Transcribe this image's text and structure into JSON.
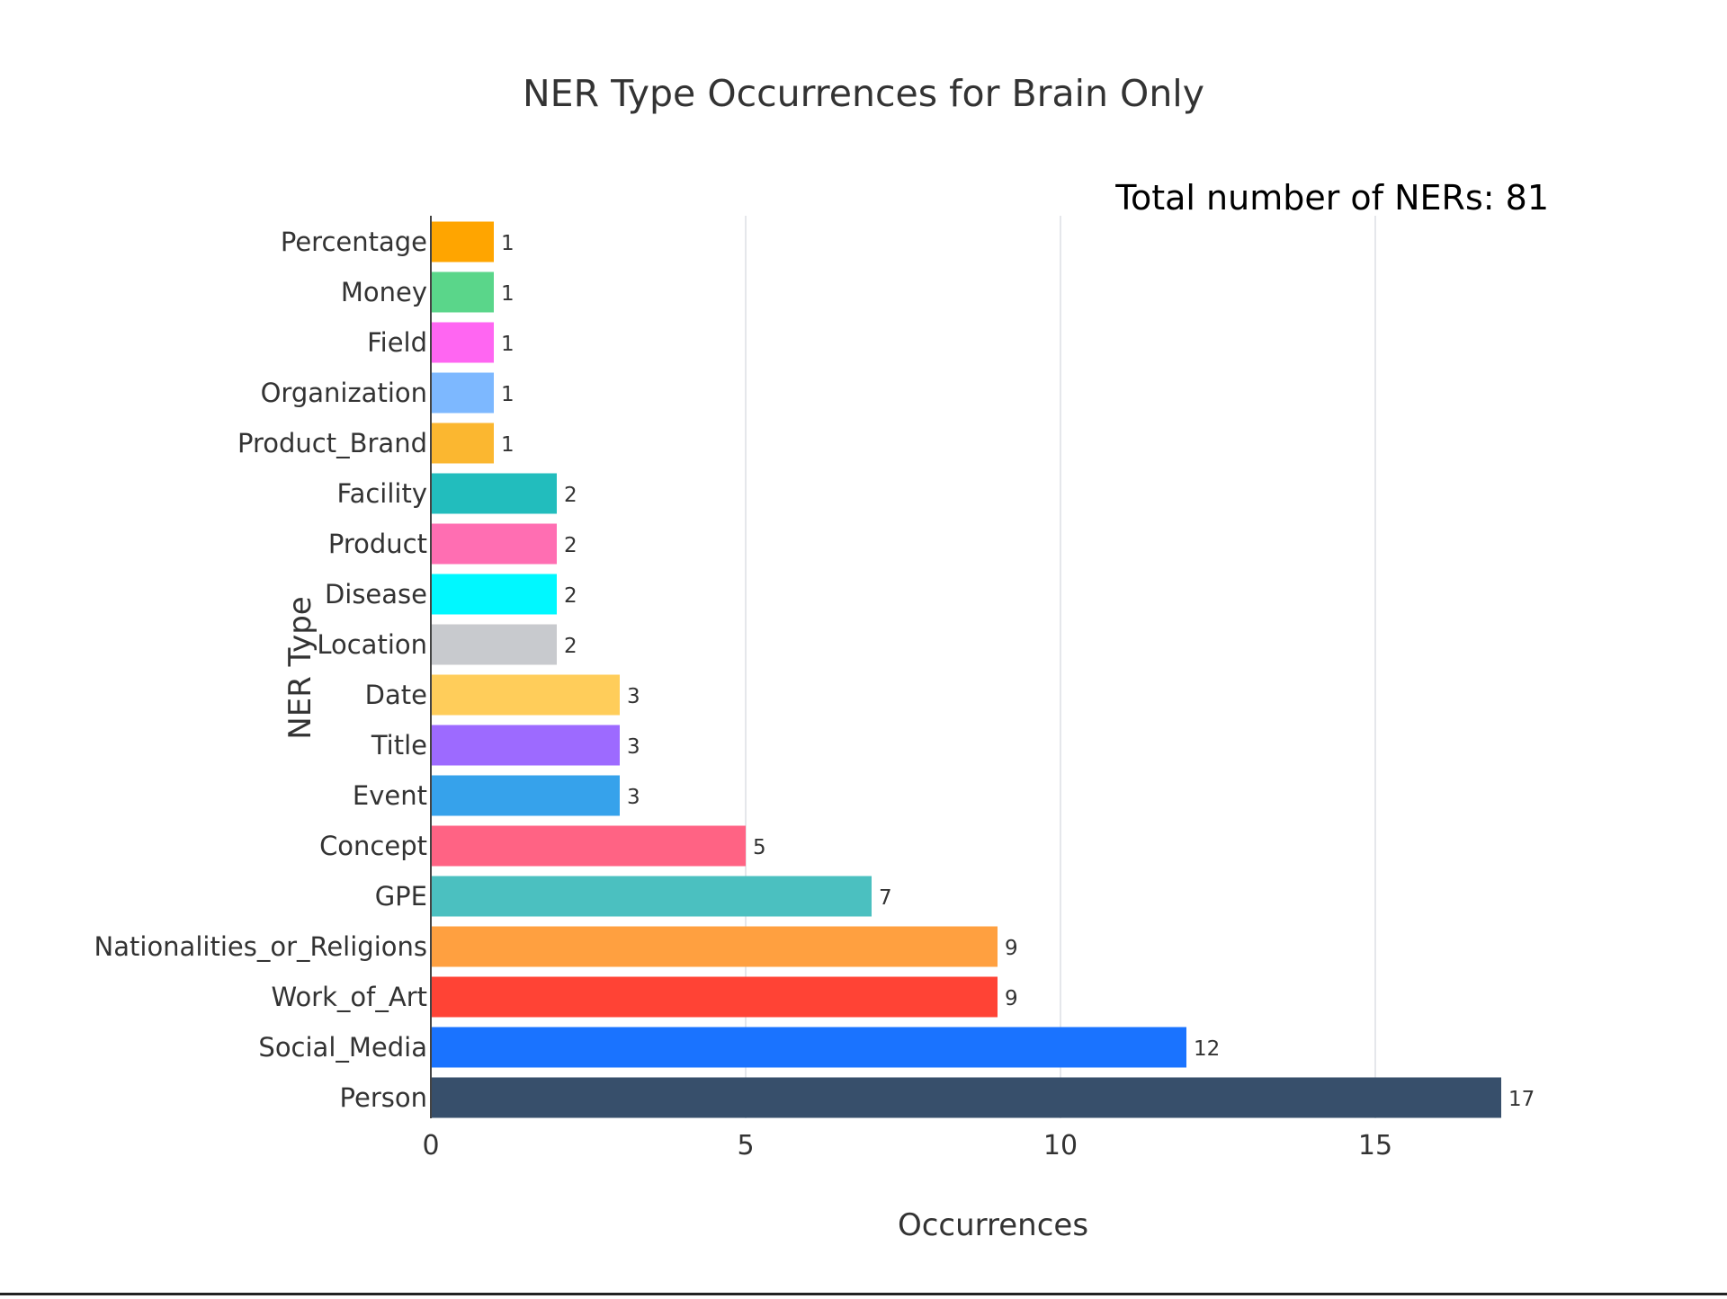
{
  "colors": {
    "background": "#ffffff",
    "grid": "#e5e7eb",
    "axis_line": "#444444",
    "text": "#333333",
    "annotation": "#000000"
  },
  "annotation": {
    "total_label": "Total number of NERs: 81"
  },
  "chart_data": {
    "type": "bar",
    "orientation": "horizontal",
    "title": "NER Type Occurrences for Brain Only",
    "xlabel": "Occurrences",
    "ylabel": "NER Type",
    "xlim": [
      0,
      17.6
    ],
    "xticks": [
      0,
      5,
      10,
      15
    ],
    "grid": true,
    "show_data_labels": true,
    "categories": [
      "Percentage",
      "Money",
      "Field",
      "Organization",
      "Product_Brand",
      "Facility",
      "Product",
      "Disease",
      "Location",
      "Date",
      "Title",
      "Event",
      "Concept",
      "GPE",
      "Nationalities_or_Religions",
      "Work_of_Art",
      "Social_Media",
      "Person"
    ],
    "values": [
      1,
      1,
      1,
      1,
      1,
      2,
      2,
      2,
      2,
      3,
      3,
      3,
      5,
      7,
      9,
      9,
      12,
      17
    ],
    "bar_colors": [
      "#FFA500",
      "#5AD68A",
      "#FF66F2",
      "#7DB8FF",
      "#FBB730",
      "#22BDBD",
      "#FF6EB2",
      "#00F8FF",
      "#C8CACE",
      "#FFCD5A",
      "#9D6AFF",
      "#36A2EB",
      "#FF6384",
      "#4BC0C0",
      "#FFA040",
      "#FF4335",
      "#1A73FF",
      "#374F6B"
    ]
  }
}
